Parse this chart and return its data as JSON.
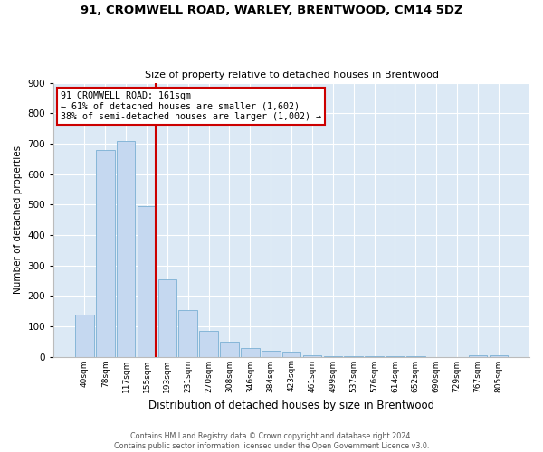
{
  "title_line1": "91, CROMWELL ROAD, WARLEY, BRENTWOOD, CM14 5DZ",
  "title_line2": "Size of property relative to detached houses in Brentwood",
  "xlabel": "Distribution of detached houses by size in Brentwood",
  "ylabel": "Number of detached properties",
  "bar_labels": [
    "40sqm",
    "78sqm",
    "117sqm",
    "155sqm",
    "193sqm",
    "231sqm",
    "270sqm",
    "308sqm",
    "346sqm",
    "384sqm",
    "423sqm",
    "461sqm",
    "499sqm",
    "537sqm",
    "576sqm",
    "614sqm",
    "652sqm",
    "690sqm",
    "729sqm",
    "767sqm",
    "805sqm"
  ],
  "bar_values": [
    138,
    680,
    710,
    495,
    253,
    153,
    85,
    50,
    28,
    20,
    15,
    5,
    3,
    3,
    2,
    1,
    1,
    0,
    0,
    5,
    5
  ],
  "bar_color": "#c5d8f0",
  "bar_edge_color": "#7aafd4",
  "vline_color": "#cc0000",
  "annotation_title": "91 CROMWELL ROAD: 161sqm",
  "annotation_line1": "← 61% of detached houses are smaller (1,602)",
  "annotation_line2": "38% of semi-detached houses are larger (1,002) →",
  "annotation_box_color": "#cc0000",
  "ylim": [
    0,
    900
  ],
  "yticks": [
    0,
    100,
    200,
    300,
    400,
    500,
    600,
    700,
    800,
    900
  ],
  "footer_line1": "Contains HM Land Registry data © Crown copyright and database right 2024.",
  "footer_line2": "Contains public sector information licensed under the Open Government Licence v3.0.",
  "fig_bg_color": "#ffffff",
  "plot_bg_color": "#dce9f5",
  "grid_color": "#ffffff"
}
